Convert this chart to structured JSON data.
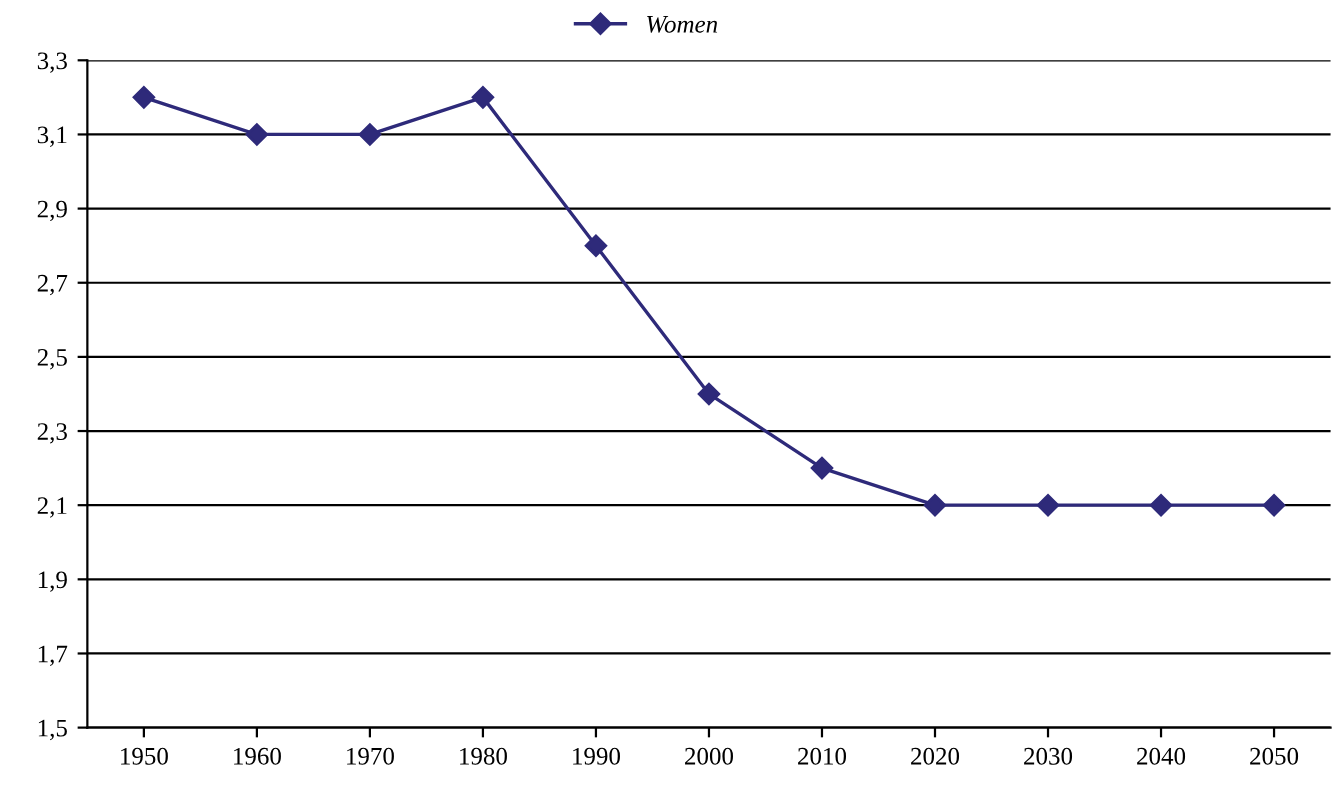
{
  "chart_data": {
    "type": "line",
    "categories": [
      "1950",
      "1960",
      "1970",
      "1980",
      "1990",
      "2000",
      "2010",
      "2020",
      "2030",
      "2040",
      "2050"
    ],
    "series": [
      {
        "name": "Women",
        "color": "#2e2a7a",
        "values": [
          3.2,
          3.1,
          3.1,
          3.2,
          2.8,
          2.4,
          2.2,
          2.1,
          2.1,
          2.1,
          2.1
        ]
      }
    ],
    "ylim": [
      1.5,
      3.3
    ],
    "yticks": [
      {
        "value": 1.5,
        "label": "1,5"
      },
      {
        "value": 1.7,
        "label": "1,7"
      },
      {
        "value": 1.9,
        "label": "1,9"
      },
      {
        "value": 2.1,
        "label": "2,1"
      },
      {
        "value": 2.3,
        "label": "2,3"
      },
      {
        "value": 2.5,
        "label": "2,5"
      },
      {
        "value": 2.7,
        "label": "2,7"
      },
      {
        "value": 2.9,
        "label": "2,9"
      },
      {
        "value": 3.1,
        "label": "3,1"
      },
      {
        "value": 3.3,
        "label": "3,3"
      }
    ],
    "grid": "y",
    "legend": "top",
    "marker": "diamond",
    "line_style": "solid"
  }
}
